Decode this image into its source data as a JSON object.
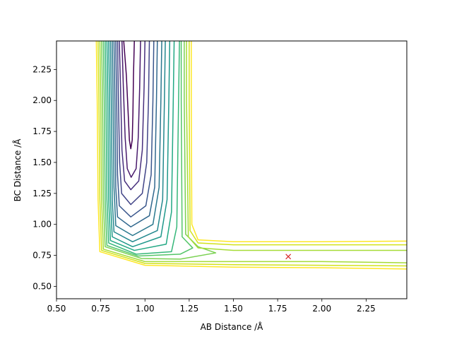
{
  "chart_data": {
    "type": "contour",
    "xlabel": "AB Distance /Å",
    "ylabel": "BC Distance /Å",
    "xlim": [
      0.5,
      2.48
    ],
    "ylim": [
      0.4,
      2.48
    ],
    "x_ticks": [
      "0.50",
      "0.75",
      "1.00",
      "1.25",
      "1.50",
      "1.75",
      "2.00",
      "2.25"
    ],
    "y_ticks": [
      "0.50",
      "0.75",
      "1.00",
      "1.25",
      "1.50",
      "1.75",
      "2.00",
      "2.25"
    ],
    "grid": false,
    "colormap": "viridis",
    "level_colors": [
      "#440154",
      "#481a6c",
      "#472f7d",
      "#414487",
      "#39568c",
      "#31688e",
      "#2a788e",
      "#23888e",
      "#1f988b",
      "#22a884",
      "#35b779",
      "#54c568",
      "#7ad151",
      "#a5db36",
      "#d2e21b",
      "#fde725"
    ],
    "marker": {
      "x": 1.81,
      "y": 0.74,
      "symbol": "x",
      "color": "#d62728"
    },
    "contours": [
      {
        "level": 0,
        "points": [
          [
            0.88,
            2.48
          ],
          [
            0.895,
            2.2
          ],
          [
            0.905,
            1.9
          ],
          [
            0.912,
            1.68
          ],
          [
            0.92,
            1.61
          ],
          [
            0.928,
            1.68
          ],
          [
            0.932,
            1.9
          ],
          [
            0.935,
            2.2
          ],
          [
            0.94,
            2.48
          ]
        ]
      },
      {
        "level": 1,
        "points": [
          [
            0.87,
            2.48
          ],
          [
            0.878,
            2.1
          ],
          [
            0.888,
            1.7
          ],
          [
            0.9,
            1.45
          ],
          [
            0.922,
            1.38
          ],
          [
            0.95,
            1.45
          ],
          [
            0.962,
            1.7
          ],
          [
            0.97,
            2.1
          ],
          [
            0.975,
            2.48
          ]
        ]
      },
      {
        "level": 2,
        "points": [
          [
            0.855,
            2.48
          ],
          [
            0.862,
            2.1
          ],
          [
            0.87,
            1.6
          ],
          [
            0.885,
            1.35
          ],
          [
            0.92,
            1.28
          ],
          [
            0.965,
            1.35
          ],
          [
            0.985,
            1.6
          ],
          [
            0.995,
            2.1
          ],
          [
            1.0,
            2.48
          ]
        ]
      },
      {
        "level": 3,
        "points": [
          [
            0.845,
            2.48
          ],
          [
            0.85,
            2.0
          ],
          [
            0.857,
            1.5
          ],
          [
            0.868,
            1.25
          ],
          [
            0.92,
            1.16
          ],
          [
            0.985,
            1.25
          ],
          [
            1.01,
            1.5
          ],
          [
            1.02,
            2.0
          ],
          [
            1.025,
            2.48
          ]
        ]
      },
      {
        "level": 4,
        "points": [
          [
            0.835,
            2.48
          ],
          [
            0.84,
            2.0
          ],
          [
            0.845,
            1.4
          ],
          [
            0.855,
            1.15
          ],
          [
            0.92,
            1.06
          ],
          [
            1.005,
            1.15
          ],
          [
            1.035,
            1.4
          ],
          [
            1.045,
            2.0
          ],
          [
            1.05,
            2.48
          ]
        ]
      },
      {
        "level": 5,
        "points": [
          [
            0.825,
            2.48
          ],
          [
            0.83,
            2.0
          ],
          [
            0.835,
            1.3
          ],
          [
            0.845,
            1.06
          ],
          [
            0.92,
            0.98
          ],
          [
            1.025,
            1.07
          ],
          [
            1.055,
            1.3
          ],
          [
            1.065,
            2.0
          ],
          [
            1.07,
            2.48
          ]
        ]
      },
      {
        "level": 6,
        "points": [
          [
            0.815,
            2.48
          ],
          [
            0.82,
            2.0
          ],
          [
            0.825,
            1.3
          ],
          [
            0.835,
            0.99
          ],
          [
            0.93,
            0.91
          ],
          [
            1.045,
            1.0
          ],
          [
            1.08,
            1.3
          ],
          [
            1.09,
            2.0
          ],
          [
            1.095,
            2.48
          ]
        ]
      },
      {
        "level": 7,
        "points": [
          [
            0.805,
            2.48
          ],
          [
            0.81,
            2.0
          ],
          [
            0.815,
            1.2
          ],
          [
            0.825,
            0.94
          ],
          [
            0.93,
            0.86
          ],
          [
            1.07,
            0.95
          ],
          [
            1.1,
            1.2
          ],
          [
            1.11,
            2.0
          ],
          [
            1.115,
            2.48
          ]
        ]
      },
      {
        "level": 8,
        "points": [
          [
            0.795,
            2.48
          ],
          [
            0.8,
            2.0
          ],
          [
            0.805,
            1.2
          ],
          [
            0.815,
            0.9
          ],
          [
            0.93,
            0.82
          ],
          [
            1.09,
            0.9
          ],
          [
            1.125,
            1.2
          ],
          [
            1.135,
            2.0
          ],
          [
            1.14,
            2.48
          ]
        ]
      },
      {
        "level": 9,
        "points": [
          [
            0.785,
            2.48
          ],
          [
            0.79,
            2.0
          ],
          [
            0.795,
            1.2
          ],
          [
            0.805,
            0.87
          ],
          [
            0.94,
            0.79
          ],
          [
            1.12,
            0.84
          ],
          [
            1.15,
            1.1
          ],
          [
            1.16,
            2.0
          ],
          [
            1.165,
            2.48
          ]
        ]
      },
      {
        "level": 10,
        "points": [
          [
            0.775,
            2.48
          ],
          [
            0.78,
            2.0
          ],
          [
            0.785,
            1.2
          ],
          [
            0.795,
            0.85
          ],
          [
            0.95,
            0.76
          ],
          [
            1.15,
            0.78
          ],
          [
            1.18,
            0.98
          ],
          [
            1.19,
            2.0
          ],
          [
            1.195,
            2.48
          ]
        ]
      },
      {
        "level": 11,
        "points": [
          [
            0.765,
            2.48
          ],
          [
            0.77,
            2.0
          ],
          [
            0.775,
            1.2
          ],
          [
            0.785,
            0.83
          ],
          [
            0.96,
            0.745
          ],
          [
            1.2,
            0.76
          ],
          [
            1.27,
            0.81
          ],
          [
            1.21,
            0.9
          ],
          [
            1.205,
            2.0
          ],
          [
            1.205,
            2.48
          ]
        ]
      },
      {
        "level": 12,
        "points": [
          [
            0.755,
            2.48
          ],
          [
            0.76,
            2.0
          ],
          [
            0.765,
            1.2
          ],
          [
            0.775,
            0.82
          ],
          [
            0.98,
            0.725
          ],
          [
            1.2,
            0.72
          ],
          [
            1.4,
            0.77
          ],
          [
            1.3,
            0.82
          ],
          [
            1.23,
            0.92
          ],
          [
            1.222,
            2.0
          ],
          [
            1.222,
            2.48
          ]
        ]
      },
      {
        "level": 13,
        "points": [
          [
            0.745,
            2.48
          ],
          [
            0.75,
            2.0
          ],
          [
            0.755,
            1.2
          ],
          [
            0.765,
            0.8
          ],
          [
            1.0,
            0.7
          ],
          [
            1.5,
            0.7
          ],
          [
            2.0,
            0.7
          ],
          [
            2.48,
            0.69
          ]
        ]
      },
      {
        "level": 13,
        "points": [
          [
            2.48,
            0.79
          ],
          [
            2.0,
            0.79
          ],
          [
            1.5,
            0.79
          ],
          [
            1.3,
            0.81
          ],
          [
            1.245,
            0.9
          ],
          [
            1.235,
            2.0
          ],
          [
            1.235,
            2.48
          ]
        ]
      },
      {
        "level": 14,
        "points": [
          [
            0.735,
            2.48
          ],
          [
            0.74,
            2.0
          ],
          [
            0.745,
            1.2
          ],
          [
            0.755,
            0.79
          ],
          [
            1.0,
            0.685
          ],
          [
            1.5,
            0.675
          ],
          [
            2.0,
            0.67
          ],
          [
            2.48,
            0.665
          ]
        ]
      },
      {
        "level": 14,
        "points": [
          [
            2.48,
            0.835
          ],
          [
            2.0,
            0.835
          ],
          [
            1.5,
            0.835
          ],
          [
            1.3,
            0.85
          ],
          [
            1.255,
            0.95
          ],
          [
            1.25,
            2.0
          ],
          [
            1.25,
            2.48
          ]
        ]
      },
      {
        "level": 15,
        "points": [
          [
            0.725,
            2.48
          ],
          [
            0.73,
            2.0
          ],
          [
            0.735,
            1.2
          ],
          [
            0.745,
            0.78
          ],
          [
            1.0,
            0.67
          ],
          [
            1.5,
            0.655
          ],
          [
            2.0,
            0.65
          ],
          [
            2.48,
            0.64
          ]
        ]
      },
      {
        "level": 15,
        "points": [
          [
            2.48,
            0.865
          ],
          [
            2.0,
            0.86
          ],
          [
            1.5,
            0.86
          ],
          [
            1.3,
            0.875
          ],
          [
            1.265,
            1.0
          ],
          [
            1.262,
            2.0
          ],
          [
            1.262,
            2.48
          ]
        ]
      }
    ]
  }
}
